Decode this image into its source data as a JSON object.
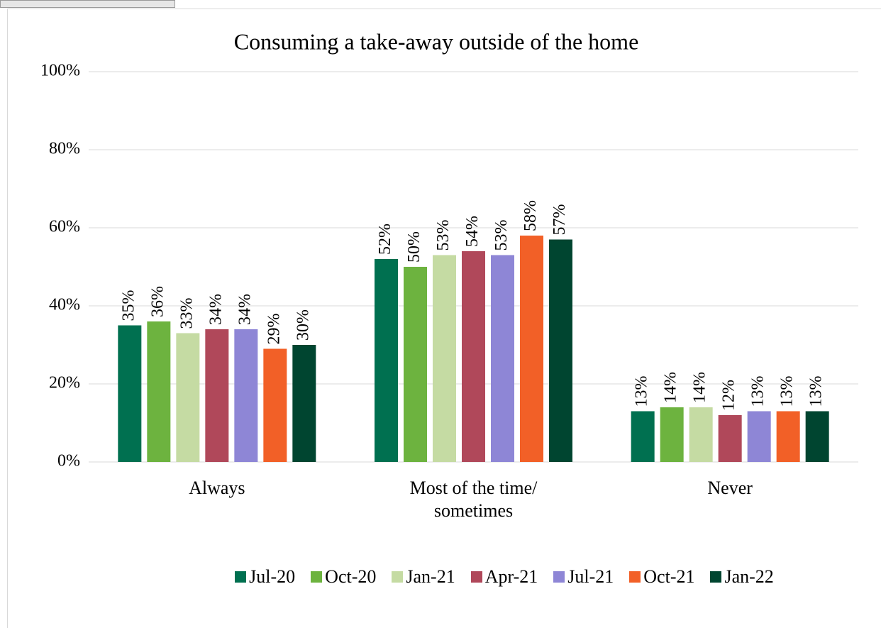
{
  "chart_data": {
    "type": "bar",
    "title": "Consuming a take-away outside of the home",
    "categories": [
      "Always",
      "Most of the time/ sometimes",
      "Never"
    ],
    "series": [
      {
        "name": "Jul-20",
        "color": "#007050",
        "values": [
          35,
          52,
          13
        ],
        "value_labels": [
          "35%",
          "52%",
          "13%"
        ]
      },
      {
        "name": "Oct-20",
        "color": "#6db33f",
        "values": [
          36,
          50,
          14
        ],
        "value_labels": [
          "36%",
          "50%",
          "14%"
        ]
      },
      {
        "name": "Jan-21",
        "color": "#c5dba3",
        "values": [
          33,
          53,
          14
        ],
        "value_labels": [
          "33%",
          "53%",
          "14%"
        ]
      },
      {
        "name": "Apr-21",
        "color": "#b0485a",
        "values": [
          34,
          54,
          12
        ],
        "value_labels": [
          "34%",
          "54%",
          "12%"
        ]
      },
      {
        "name": "Jul-21",
        "color": "#8e86d6",
        "values": [
          34,
          53,
          13
        ],
        "value_labels": [
          "34%",
          "53%",
          "13%"
        ]
      },
      {
        "name": "Oct-21",
        "color": "#f26027",
        "values": [
          29,
          58,
          13
        ],
        "value_labels": [
          "29%",
          "58%",
          "13%"
        ]
      },
      {
        "name": "Jan-22",
        "color": "#004530",
        "values": [
          30,
          57,
          13
        ],
        "value_labels": [
          "30%",
          "57%",
          "13%"
        ]
      }
    ],
    "ylim": [
      0,
      100
    ],
    "yticks": [
      {
        "value": 0,
        "label": "0%"
      },
      {
        "value": 20,
        "label": "20%"
      },
      {
        "value": 40,
        "label": "40%"
      },
      {
        "value": 60,
        "label": "60%"
      },
      {
        "value": 80,
        "label": "80%"
      },
      {
        "value": 100,
        "label": "100%"
      }
    ],
    "grid": true,
    "legend": "bottom"
  }
}
